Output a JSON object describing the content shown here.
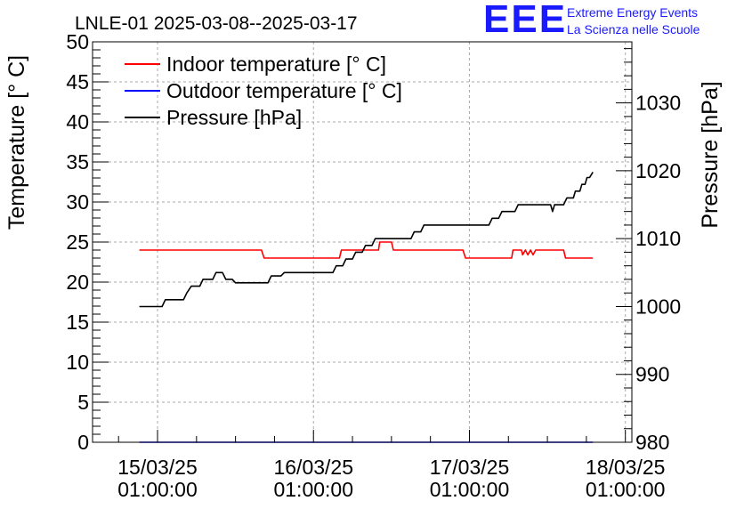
{
  "chart_data": {
    "type": "line",
    "title": "LNLE-01 2025-03-08--2025-03-17",
    "ylabel_left": "Temperature [° C]",
    "ylabel_right": "Pressure [hPa]",
    "ylim_left": [
      0,
      50
    ],
    "ylim_right": [
      980,
      1039
    ],
    "left_ticks": [
      "0",
      "5",
      "10",
      "15",
      "20",
      "25",
      "30",
      "35",
      "40",
      "45",
      "50"
    ],
    "right_ticks": [
      "980",
      "990",
      "1000",
      "1010",
      "1020",
      "1030"
    ],
    "x_ticks": [
      {
        "date": "15/03/25",
        "time": "01:00:00",
        "x": 0
      },
      {
        "date": "16/03/25",
        "time": "01:00:00",
        "x": 24
      },
      {
        "date": "17/03/25",
        "time": "01:00:00",
        "x": 48
      },
      {
        "date": "18/03/25",
        "time": "01:00:00",
        "x": 72
      }
    ],
    "xlim": [
      -10,
      73
    ],
    "grid": true,
    "legend_position": "top-left",
    "series": [
      {
        "name": "Indoor temperature [° C]",
        "color": "#ff0000",
        "axis": "left",
        "points": [
          [
            -2.8,
            24
          ],
          [
            16,
            24
          ],
          [
            16.4,
            23
          ],
          [
            28,
            23
          ],
          [
            28.3,
            24
          ],
          [
            34,
            24
          ],
          [
            34.2,
            25
          ],
          [
            36,
            25
          ],
          [
            36.3,
            24
          ],
          [
            47,
            24
          ],
          [
            47.4,
            23
          ],
          [
            54.5,
            23
          ],
          [
            54.7,
            24
          ],
          [
            56,
            24
          ],
          [
            56.2,
            23.4
          ],
          [
            56.6,
            24
          ],
          [
            57,
            23.4
          ],
          [
            57.4,
            24
          ],
          [
            57.8,
            23.4
          ],
          [
            58.2,
            24
          ],
          [
            62.5,
            24
          ],
          [
            62.8,
            23
          ],
          [
            67,
            23
          ]
        ]
      },
      {
        "name": "Outdoor temperature [° C]",
        "color": "#0000ff",
        "axis": "left",
        "points": [
          [
            -2.8,
            0
          ],
          [
            67,
            0
          ]
        ]
      },
      {
        "name": "Pressure [hPa]",
        "color": "#000000",
        "axis": "right",
        "points": [
          [
            -2.8,
            1000
          ],
          [
            0.7,
            1000
          ],
          [
            1.2,
            1001
          ],
          [
            4,
            1001
          ],
          [
            4.5,
            1002
          ],
          [
            5.2,
            1003
          ],
          [
            6.5,
            1003
          ],
          [
            7,
            1004
          ],
          [
            8.5,
            1004
          ],
          [
            9,
            1005
          ],
          [
            10,
            1005
          ],
          [
            10.5,
            1004
          ],
          [
            11.5,
            1004
          ],
          [
            12,
            1003.5
          ],
          [
            17,
            1003.5
          ],
          [
            17.5,
            1004.5
          ],
          [
            19,
            1004.5
          ],
          [
            19.5,
            1005
          ],
          [
            27,
            1005
          ],
          [
            27.5,
            1006
          ],
          [
            28.5,
            1006
          ],
          [
            29,
            1007
          ],
          [
            30,
            1007
          ],
          [
            30.5,
            1008
          ],
          [
            31.5,
            1008
          ],
          [
            32,
            1009
          ],
          [
            33,
            1009
          ],
          [
            33.5,
            1010
          ],
          [
            39,
            1010
          ],
          [
            39.5,
            1011
          ],
          [
            40.5,
            1011
          ],
          [
            41,
            1012
          ],
          [
            51,
            1012
          ],
          [
            51.5,
            1013
          ],
          [
            52.5,
            1013
          ],
          [
            53,
            1014
          ],
          [
            55,
            1014
          ],
          [
            55.5,
            1015
          ],
          [
            60.5,
            1015
          ],
          [
            60.8,
            1014
          ],
          [
            61.1,
            1015
          ],
          [
            62.5,
            1015
          ],
          [
            63,
            1016
          ],
          [
            64,
            1016
          ],
          [
            64.3,
            1017
          ],
          [
            65,
            1017
          ],
          [
            65.3,
            1018
          ],
          [
            65.8,
            1018
          ],
          [
            66.1,
            1019
          ],
          [
            66.5,
            1019
          ],
          [
            67,
            1019.8
          ]
        ]
      }
    ]
  },
  "logo": {
    "letters": "EEE",
    "line1": "Extreme Energy Events",
    "line2": "La Scienza nelle Scuole"
  }
}
